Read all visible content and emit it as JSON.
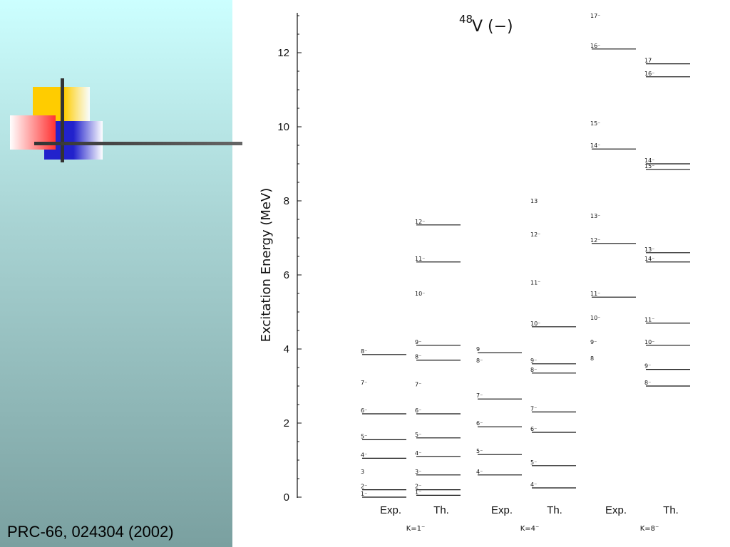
{
  "citation": "PRC-66, 024304 (2002)",
  "colors": {
    "background_top": "#ccffff",
    "background_bottom": "#7aa0a0",
    "deco_yellow": "#ffcc00",
    "deco_red": "#ff3333",
    "deco_blue": "#2222cc",
    "deco_line": "#333333"
  },
  "chart_data": {
    "type": "level-scheme",
    "title_mass": "48",
    "title_text": "V (−)",
    "ylabel": "Excitation Energy (MeV)",
    "ylim": [
      0,
      13
    ],
    "yticks": [
      0,
      2,
      4,
      6,
      8,
      10,
      12
    ],
    "columns": [
      {
        "label": "Exp.",
        "levels": [
          {
            "label": "1⁻",
            "e": 0.0
          },
          {
            "label": "2⁻",
            "e": 0.2
          },
          {
            "label": "3",
            "e": 0.6,
            "no_line": true
          },
          {
            "label": "4⁻",
            "e": 1.05
          },
          {
            "label": "5⁻",
            "e": 1.55
          },
          {
            "label": "6⁻",
            "e": 2.25
          },
          {
            "label": "7⁻",
            "e": 3.0,
            "no_line": true
          },
          {
            "label": "8⁻",
            "e": 3.85
          }
        ]
      },
      {
        "label": "Th.",
        "levels": [
          {
            "label": "1⁻",
            "e": 0.05
          },
          {
            "label": "2⁻",
            "e": 0.2
          },
          {
            "label": "3⁻",
            "e": 0.6
          },
          {
            "label": "4⁻",
            "e": 1.1
          },
          {
            "label": "5⁻",
            "e": 1.6
          },
          {
            "label": "6⁻",
            "e": 2.25
          },
          {
            "label": "7⁻",
            "e": 2.95,
            "no_line": true
          },
          {
            "label": "8⁻",
            "e": 3.7
          },
          {
            "label": "9⁻",
            "e": 4.1
          },
          {
            "label": "10⁻",
            "e": 5.4,
            "no_line": true
          },
          {
            "label": "11⁻",
            "e": 6.35
          },
          {
            "label": "12⁻",
            "e": 7.35
          }
        ]
      },
      {
        "label": "Exp.",
        "levels": [
          {
            "label": "4⁻",
            "e": 0.6
          },
          {
            "label": "5⁻",
            "e": 1.15
          },
          {
            "label": "6⁻",
            "e": 1.9
          },
          {
            "label": "7⁻",
            "e": 2.65
          },
          {
            "label": "8⁻",
            "e": 3.6,
            "no_line": true
          },
          {
            "label": "9",
            "e": 3.9
          }
        ]
      },
      {
        "label": "Th.",
        "levels": [
          {
            "label": "4⁻",
            "e": 0.25
          },
          {
            "label": "5⁻",
            "e": 0.85
          },
          {
            "label": "6⁻",
            "e": 1.75
          },
          {
            "label": "7⁻",
            "e": 2.3
          },
          {
            "label": "8⁻",
            "e": 3.35
          },
          {
            "label": "9⁻",
            "e": 3.6
          },
          {
            "label": "10⁻",
            "e": 4.6
          },
          {
            "label": "11⁻",
            "e": 5.7,
            "no_line": true
          },
          {
            "label": "12⁻",
            "e": 7.0,
            "no_line": true
          },
          {
            "label": "13",
            "e": 7.9,
            "no_line": true
          }
        ]
      },
      {
        "label": "Exp.",
        "levels": [
          {
            "label": "8",
            "e": 3.65,
            "no_line": true
          },
          {
            "label": "9⁻",
            "e": 4.1,
            "no_line": true
          },
          {
            "label": "10⁻",
            "e": 4.75,
            "no_line": true
          },
          {
            "label": "11⁻",
            "e": 5.4
          },
          {
            "label": "12⁻",
            "e": 6.85
          },
          {
            "label": "13⁻",
            "e": 7.5,
            "no_line": true
          },
          {
            "label": "14⁻",
            "e": 9.4
          },
          {
            "label": "15⁻",
            "e": 10.0,
            "no_line": true
          },
          {
            "label": "16⁻",
            "e": 12.1
          },
          {
            "label": "17⁻",
            "e": 12.9,
            "no_line": true
          }
        ]
      },
      {
        "label": "Th.",
        "levels": [
          {
            "label": "8⁻",
            "e": 3.0
          },
          {
            "label": "9⁻",
            "e": 3.45
          },
          {
            "label": "10⁻",
            "e": 4.1
          },
          {
            "label": "11⁻",
            "e": 4.7
          },
          {
            "label": "14⁻",
            "e": 6.35
          },
          {
            "label": "13⁻",
            "e": 6.6
          },
          {
            "label": "15⁻",
            "e": 8.85
          },
          {
            "label": "14⁻",
            "e": 9.0
          },
          {
            "label": "16⁻",
            "e": 11.35
          },
          {
            "label": "17",
            "e": 11.7
          }
        ]
      }
    ],
    "bands": [
      {
        "label": "K=1⁻"
      },
      {
        "label": "K=4⁻"
      },
      {
        "label": "K=8⁻"
      }
    ]
  }
}
